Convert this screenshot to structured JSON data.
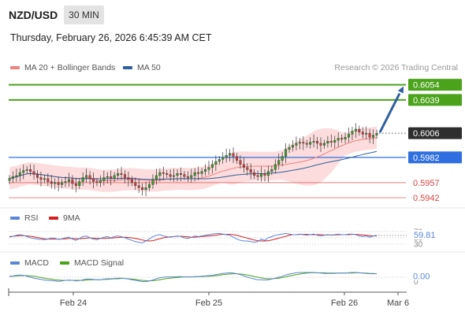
{
  "header": {
    "symbol": "NZD/USD",
    "timeframe": "30 MIN",
    "datetime": "Thursday, February 26, 2026 6:45:39 AM CET"
  },
  "legend": {
    "ma20": {
      "label": "MA 20 + Bollinger Bands",
      "color": "#f08080"
    },
    "ma50": {
      "label": "MA 50",
      "color": "#2e5f9e"
    },
    "research": "Research © 2026 Trading Central"
  },
  "chart_data": {
    "type": "candlestick",
    "current_price": "0.6006",
    "price_range": [
      0.5935,
      0.606
    ],
    "levels": [
      {
        "value": "0.6054",
        "kind": "resistance",
        "color": "#4aa31a"
      },
      {
        "value": "0.6039",
        "kind": "resistance",
        "color": "#4aa31a"
      },
      {
        "value": "0.5982",
        "kind": "pivot",
        "color": "#2f6fe0"
      },
      {
        "value": "0.5957",
        "kind": "support",
        "color": "#e06a6a"
      },
      {
        "value": "0.5942",
        "kind": "support",
        "color": "#e06a6a"
      }
    ],
    "target": "0.6054",
    "x_ticks": [
      "Feb 24",
      "Feb 25",
      "Feb 26",
      "Mar 6"
    ],
    "candle_close": [
      0.5961,
      0.5963,
      0.5964,
      0.5967,
      0.5969,
      0.597,
      0.5968,
      0.5965,
      0.5962,
      0.596,
      0.5961,
      0.5958,
      0.5956,
      0.5957,
      0.5955,
      0.5957,
      0.5958,
      0.596,
      0.5956,
      0.5954,
      0.5958,
      0.5962,
      0.5964,
      0.5961,
      0.5958,
      0.5957,
      0.5959,
      0.5962,
      0.5963,
      0.5961,
      0.5964,
      0.5966,
      0.5965,
      0.5962,
      0.596,
      0.5957,
      0.5954,
      0.5952,
      0.595,
      0.5952,
      0.5955,
      0.596,
      0.5964,
      0.5967,
      0.5966,
      0.5965,
      0.5963,
      0.5964,
      0.5966,
      0.5965,
      0.5963,
      0.5962,
      0.5964,
      0.5967,
      0.5966,
      0.5968,
      0.597,
      0.5972,
      0.5975,
      0.5978,
      0.598,
      0.5982,
      0.5984,
      0.5986,
      0.5983,
      0.5979,
      0.5975,
      0.5972,
      0.597,
      0.5967,
      0.5964,
      0.5963,
      0.5966,
      0.5964,
      0.5968,
      0.597,
      0.5975,
      0.5979,
      0.5983,
      0.599,
      0.5992,
      0.5994,
      0.5996,
      0.5997,
      0.5996,
      0.5995,
      0.5997,
      0.5998,
      0.5996,
      0.5994,
      0.5996,
      0.5998,
      0.5997,
      0.5999,
      0.6001,
      0.6,
      0.6002,
      0.6005,
      0.6008,
      0.601,
      0.6007,
      0.6005,
      0.6006,
      0.6002,
      0.6004,
      0.6006
    ],
    "rsi": {
      "name": "RSI",
      "color": "#5b86d6",
      "levels": [
        "70",
        "50",
        "30"
      ],
      "value": "59.81",
      "values": [
        52,
        55,
        58,
        60,
        58,
        54,
        50,
        48,
        46,
        45,
        44,
        46,
        50,
        48,
        45,
        47,
        50,
        52,
        46,
        42,
        48,
        54,
        56,
        50,
        46,
        44,
        48,
        52,
        54,
        50,
        54,
        56,
        54,
        50,
        46,
        42,
        38,
        36,
        34,
        40,
        46,
        54,
        58,
        60,
        56,
        54,
        52,
        54,
        56,
        54,
        50,
        48,
        52,
        56,
        54,
        56,
        58,
        60,
        62,
        63,
        64,
        62,
        60,
        58,
        52,
        46,
        42,
        40,
        40,
        38,
        36,
        38,
        46,
        42,
        50,
        54,
        58,
        60,
        62,
        64,
        62,
        60,
        60,
        62,
        60,
        58,
        60,
        62,
        58,
        56,
        58,
        60,
        58,
        60,
        62,
        60,
        60,
        62,
        62,
        60,
        56,
        54,
        56,
        52,
        56,
        58
      ]
    },
    "rsi_ma": {
      "name": "9MA",
      "color": "#d42020",
      "values": [
        54,
        55,
        56,
        57,
        57,
        56,
        55,
        53,
        51,
        49,
        47,
        46,
        46,
        46,
        46,
        46,
        47,
        48,
        48,
        47,
        47,
        48,
        49,
        50,
        49,
        48,
        48,
        48,
        49,
        49,
        50,
        51,
        52,
        52,
        51,
        50,
        48,
        46,
        43,
        41,
        40,
        41,
        44,
        47,
        50,
        52,
        53,
        54,
        55,
        55,
        54,
        53,
        52,
        52,
        53,
        54,
        55,
        56,
        57,
        58,
        60,
        61,
        61,
        61,
        60,
        58,
        55,
        52,
        49,
        46,
        43,
        41,
        40,
        40,
        41,
        43,
        46,
        49,
        52,
        55,
        58,
        60,
        60,
        61,
        61,
        61,
        60,
        60,
        60,
        60,
        59,
        59,
        59,
        59,
        60,
        60,
        60,
        60,
        61,
        61,
        60,
        59,
        58,
        57,
        56,
        56
      ]
    },
    "macd": {
      "name": "MACD",
      "color": "#5b86d6",
      "value": "0.00",
      "zero_label": "0",
      "values": [
        0.2,
        0.4,
        0.6,
        0.7,
        0.6,
        0.3,
        0.0,
        -0.3,
        -0.5,
        -0.7,
        -0.9,
        -1.0,
        -1.1,
        -1.2,
        -1.3,
        -1.2,
        -1.0,
        -0.9,
        -1.0,
        -1.2,
        -1.1,
        -0.8,
        -0.6,
        -0.6,
        -0.7,
        -0.8,
        -0.8,
        -0.6,
        -0.5,
        -0.5,
        -0.4,
        -0.3,
        -0.3,
        -0.4,
        -0.6,
        -0.8,
        -1.0,
        -1.2,
        -1.4,
        -1.4,
        -1.2,
        -0.9,
        -0.5,
        -0.2,
        0.0,
        0.1,
        0.1,
        0.1,
        0.2,
        0.2,
        0.1,
        0.1,
        0.1,
        0.2,
        0.2,
        0.3,
        0.4,
        0.5,
        0.6,
        0.8,
        1.0,
        1.2,
        1.3,
        1.4,
        1.3,
        1.1,
        0.8,
        0.4,
        0.0,
        -0.3,
        -0.6,
        -0.8,
        -0.8,
        -0.9,
        -0.8,
        -0.6,
        -0.3,
        0.0,
        0.3,
        0.7,
        1.0,
        1.2,
        1.4,
        1.5,
        1.5,
        1.5,
        1.5,
        1.5,
        1.4,
        1.3,
        1.2,
        1.2,
        1.2,
        1.2,
        1.3,
        1.3,
        1.3,
        1.4,
        1.5,
        1.5,
        1.4,
        1.3,
        1.2,
        1.1,
        1.1,
        1.1
      ]
    },
    "macd_signal": {
      "name": "MACD Signal",
      "color": "#4aa31a",
      "values": [
        0.3,
        0.3,
        0.4,
        0.5,
        0.5,
        0.5,
        0.4,
        0.3,
        0.1,
        -0.1,
        -0.3,
        -0.5,
        -0.6,
        -0.8,
        -0.9,
        -1.0,
        -1.0,
        -1.0,
        -1.0,
        -1.0,
        -1.0,
        -1.0,
        -0.9,
        -0.8,
        -0.8,
        -0.8,
        -0.8,
        -0.7,
        -0.7,
        -0.6,
        -0.5,
        -0.5,
        -0.4,
        -0.4,
        -0.5,
        -0.6,
        -0.7,
        -0.9,
        -1.0,
        -1.1,
        -1.2,
        -1.1,
        -1.0,
        -0.8,
        -0.6,
        -0.4,
        -0.3,
        -0.2,
        -0.1,
        0.0,
        0.1,
        0.1,
        0.1,
        0.1,
        0.2,
        0.2,
        0.3,
        0.3,
        0.4,
        0.5,
        0.6,
        0.8,
        0.9,
        1.0,
        1.1,
        1.1,
        1.0,
        0.9,
        0.7,
        0.5,
        0.2,
        0.0,
        -0.2,
        -0.4,
        -0.5,
        -0.5,
        -0.4,
        -0.3,
        -0.1,
        0.1,
        0.4,
        0.6,
        0.8,
        1.0,
        1.2,
        1.3,
        1.4,
        1.4,
        1.4,
        1.4,
        1.4,
        1.3,
        1.3,
        1.3,
        1.3,
        1.3,
        1.3,
        1.3,
        1.3,
        1.4,
        1.4,
        1.3,
        1.3,
        1.2,
        1.2,
        1.1
      ]
    }
  }
}
